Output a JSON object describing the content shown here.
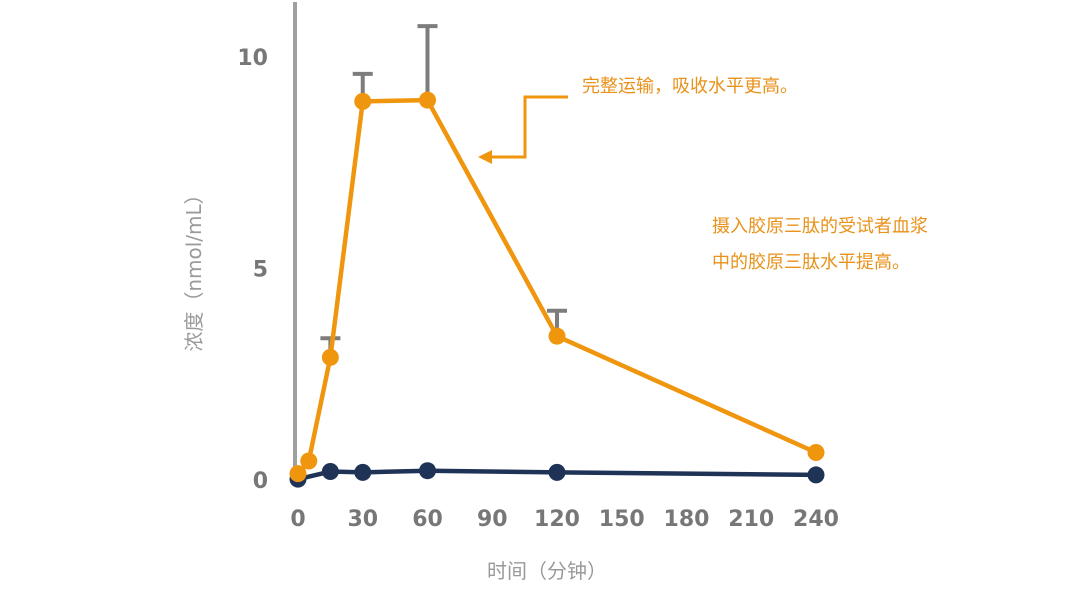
{
  "chart_data": {
    "type": "line",
    "xlabel": "时间（分钟）",
    "ylabel": "浓度（nmol/mL）",
    "xlim": [
      0,
      240
    ],
    "ylim": [
      0,
      10
    ],
    "x_ticks": [
      0,
      30,
      60,
      90,
      120,
      150,
      180,
      210,
      240
    ],
    "y_ticks": [
      0,
      5,
      10
    ],
    "grid": false,
    "series": [
      {
        "color": "#f0960e",
        "x": [
          0,
          5,
          15,
          30,
          60,
          120,
          240
        ],
        "y": [
          0.15,
          0.45,
          2.9,
          8.95,
          8.98,
          3.4,
          0.65
        ],
        "error": [
          0,
          0,
          0.45,
          0.65,
          1.75,
          0.6,
          0
        ]
      },
      {
        "color": "#1f3357",
        "x": [
          0,
          15,
          30,
          60,
          120,
          240
        ],
        "y": [
          0.02,
          0.2,
          0.18,
          0.22,
          0.18,
          0.12
        ]
      }
    ],
    "annotations": [
      {
        "lines": [
          "完整运输，吸收水平更高。"
        ],
        "color": "#e8921a"
      },
      {
        "lines": [
          "摄入胶原三肽的受试者血浆",
          "中的胶原三肽水平提高。"
        ],
        "color": "#e8921a"
      }
    ]
  }
}
